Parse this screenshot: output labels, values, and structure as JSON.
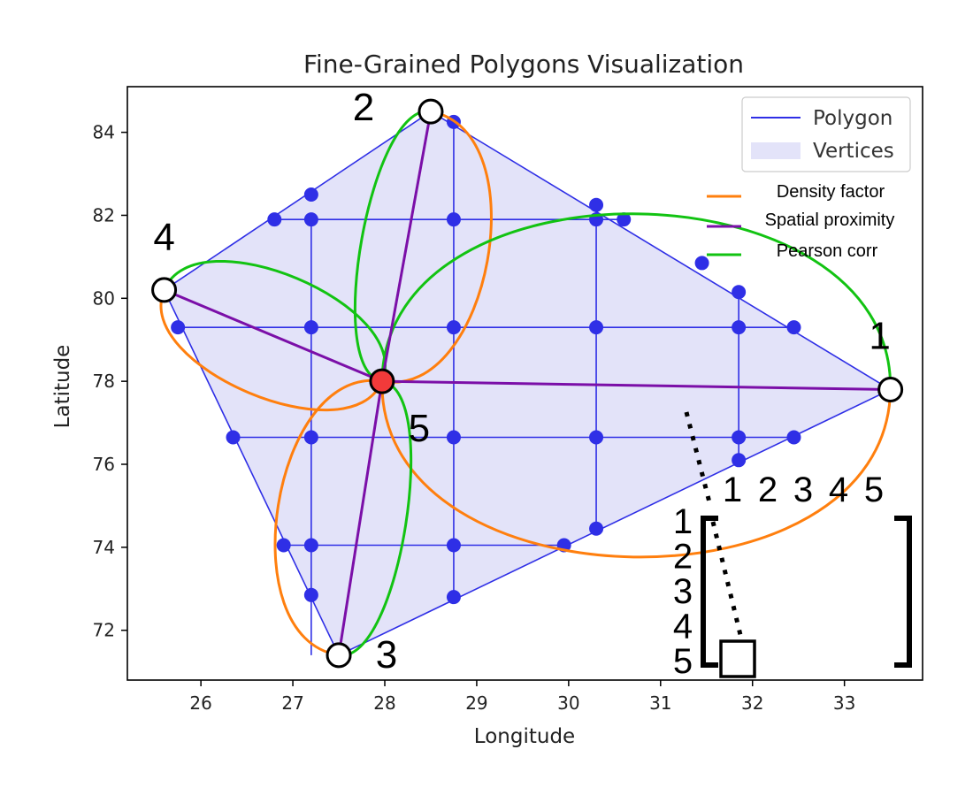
{
  "chart_data": {
    "type": "scatter",
    "title": "Fine-Grained Polygons Visualization",
    "xlabel": "Longitude",
    "ylabel": "Latitude",
    "xlim": [
      25.2,
      33.85
    ],
    "ylim": [
      70.8,
      85.1
    ],
    "x_ticks": [
      26,
      27,
      28,
      29,
      30,
      31,
      32,
      33
    ],
    "y_ticks": [
      72,
      74,
      76,
      78,
      80,
      82,
      84
    ],
    "grid": false,
    "colors": {
      "polygon": "#2f2fe6",
      "fill": "#e3e3f9",
      "density": "#ff7f0e",
      "spatial": "#7b0fa8",
      "pearson": "#12c312",
      "center": "#f23a3a"
    },
    "polygon": [
      [
        28.5,
        84.5
      ],
      [
        33.5,
        77.8
      ],
      [
        27.5,
        71.4
      ],
      [
        25.6,
        80.2
      ]
    ],
    "grid_lines": {
      "vertical": [
        {
          "x": 27.2,
          "y": [
            71.4,
            81.9
          ]
        },
        {
          "x": 28.75,
          "y": [
            72.8,
            84.2
          ]
        },
        {
          "x": 30.3,
          "y": [
            74.4,
            82.2
          ]
        },
        {
          "x": 31.85,
          "y": [
            76.1,
            80.1
          ]
        }
      ],
      "horizontal": [
        {
          "y": 81.9,
          "x": [
            26.8,
            30.6
          ]
        },
        {
          "y": 79.3,
          "x": [
            25.75,
            32.45
          ]
        },
        {
          "y": 76.65,
          "x": [
            26.35,
            32.45
          ]
        },
        {
          "y": 74.05,
          "x": [
            26.9,
            29.95
          ]
        }
      ]
    },
    "vertices": [
      [
        28.75,
        84.25
      ],
      [
        27.2,
        82.5
      ],
      [
        26.8,
        81.9
      ],
      [
        27.2,
        81.9
      ],
      [
        28.75,
        81.9
      ],
      [
        30.3,
        82.25
      ],
      [
        30.3,
        81.9
      ],
      [
        30.6,
        81.9
      ],
      [
        31.45,
        80.85
      ],
      [
        31.85,
        80.15
      ],
      [
        25.75,
        79.3
      ],
      [
        27.2,
        79.3
      ],
      [
        28.75,
        79.3
      ],
      [
        30.3,
        79.3
      ],
      [
        31.85,
        79.3
      ],
      [
        32.45,
        79.3
      ],
      [
        26.35,
        76.65
      ],
      [
        27.2,
        76.65
      ],
      [
        28.75,
        76.65
      ],
      [
        30.3,
        76.65
      ],
      [
        31.85,
        76.65
      ],
      [
        32.45,
        76.65
      ],
      [
        31.85,
        76.1
      ],
      [
        30.3,
        74.45
      ],
      [
        29.95,
        74.05
      ],
      [
        26.9,
        74.05
      ],
      [
        27.2,
        74.05
      ],
      [
        28.75,
        74.05
      ],
      [
        27.2,
        72.85
      ],
      [
        28.75,
        72.8
      ]
    ],
    "nodes": [
      {
        "id": "1",
        "x": 33.5,
        "y": 77.8
      },
      {
        "id": "2",
        "x": 28.5,
        "y": 84.5
      },
      {
        "id": "3",
        "x": 27.5,
        "y": 71.4
      },
      {
        "id": "4",
        "x": 25.6,
        "y": 80.2
      },
      {
        "id": "5",
        "x": 27.97,
        "y": 78.0,
        "center": true
      }
    ],
    "legend": {
      "polygon_label": "Polygon",
      "vertices_label": "Vertices",
      "density_label": "Density factor",
      "spatial_label": "Spatial proximity",
      "pearson_label": "Pearson corr"
    },
    "matrix": {
      "col_labels": [
        "1",
        "2",
        "3",
        "4",
        "5"
      ],
      "row_labels": [
        "1",
        "2",
        "3",
        "4",
        "5"
      ]
    }
  }
}
